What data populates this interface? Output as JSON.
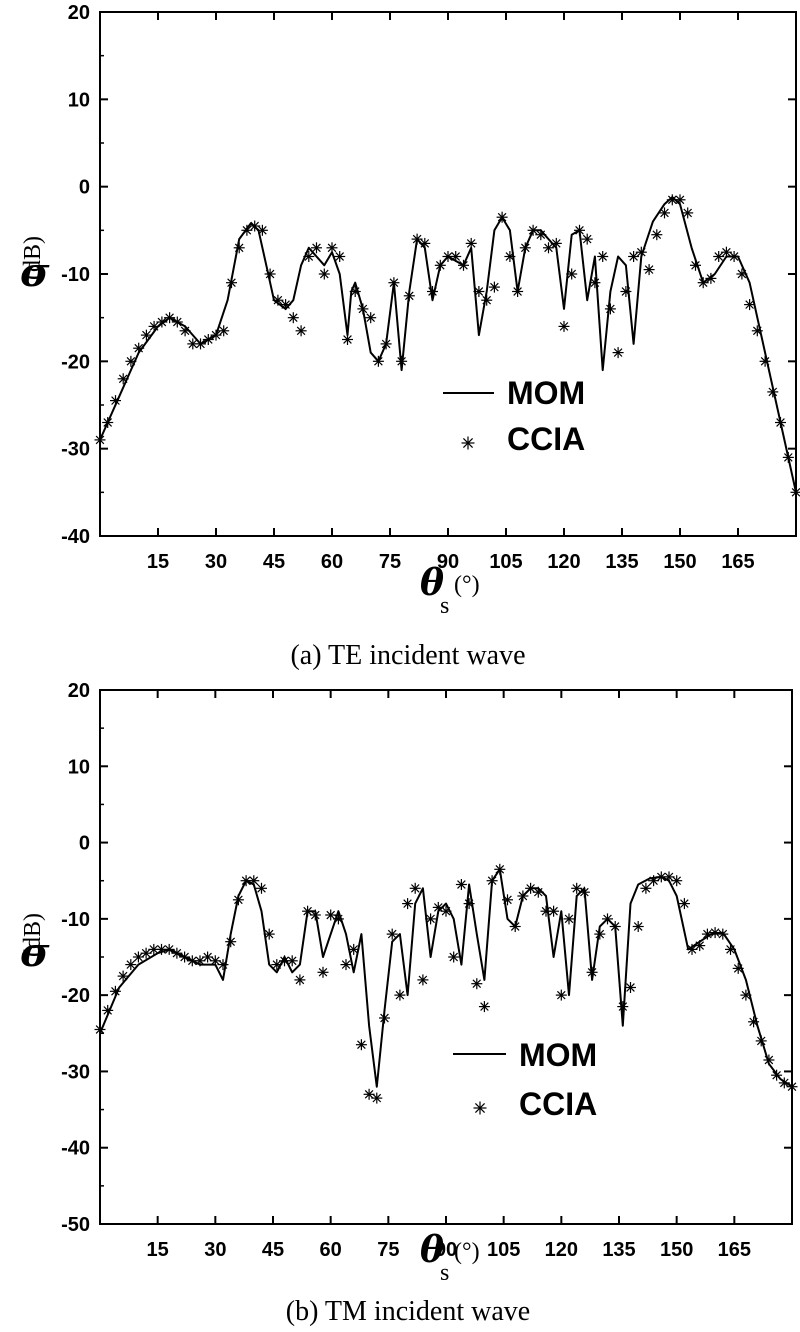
{
  "chart_data": [
    {
      "type": "line",
      "caption": "(a) TE incident wave",
      "ylabel_symbol": "σ",
      "ylabel_unit": "(dB)",
      "xlabel_symbol": "θ",
      "xlabel_sub": "s",
      "xlabel_unit": "(°)",
      "xlim": [
        0,
        180
      ],
      "ylim": [
        -40,
        20
      ],
      "xticks": [
        15,
        30,
        45,
        60,
        75,
        90,
        105,
        120,
        135,
        150,
        165
      ],
      "yticks": [
        20,
        10,
        0,
        -10,
        -20,
        -30,
        -40
      ],
      "legend": [
        "MOM",
        "CCIA"
      ],
      "legend_position": "center-right",
      "series": [
        {
          "name": "MOM",
          "style": "line",
          "x": [
            0,
            5,
            10,
            15,
            18,
            22,
            26,
            30,
            33,
            36,
            39,
            41,
            43,
            45,
            48,
            50,
            52,
            54,
            56,
            58,
            60,
            62,
            64,
            65,
            66,
            68,
            70,
            72,
            74,
            76,
            78,
            80,
            82,
            84,
            86,
            88,
            90,
            92,
            94,
            96,
            98,
            100,
            102,
            104,
            106,
            108,
            110,
            112,
            114,
            116,
            118,
            120,
            122,
            124,
            126,
            128,
            130,
            132,
            134,
            136,
            138,
            140,
            143,
            146,
            148,
            150,
            153,
            156,
            159,
            162,
            165,
            168,
            171,
            174,
            177,
            180
          ],
          "y": [
            -29,
            -24,
            -19,
            -16,
            -15,
            -16,
            -18,
            -17,
            -13,
            -6,
            -4.2,
            -5,
            -9,
            -13,
            -14,
            -13,
            -9,
            -7,
            -8,
            -9,
            -7.5,
            -10,
            -17,
            -12,
            -11,
            -14,
            -19,
            -20,
            -18,
            -11,
            -21,
            -12,
            -6,
            -7,
            -13,
            -9,
            -8,
            -8.5,
            -9,
            -7,
            -17,
            -12,
            -5,
            -3.5,
            -5,
            -12,
            -7,
            -5,
            -5,
            -6,
            -7,
            -14,
            -5.5,
            -5,
            -13,
            -8,
            -21,
            -12,
            -8,
            -9,
            -18,
            -8,
            -4,
            -2,
            -1.2,
            -2,
            -7,
            -11,
            -10,
            -8,
            -8,
            -11,
            -17,
            -23,
            -29,
            -35
          ]
        },
        {
          "name": "CCIA",
          "style": "markers",
          "x": [
            0,
            2,
            4,
            6,
            8,
            10,
            12,
            14,
            16,
            18,
            20,
            22,
            24,
            26,
            28,
            30,
            32,
            34,
            36,
            38,
            40,
            42,
            44,
            46,
            48,
            50,
            52,
            54,
            56,
            58,
            60,
            62,
            64,
            66,
            68,
            70,
            72,
            74,
            76,
            78,
            80,
            82,
            84,
            86,
            88,
            90,
            92,
            94,
            96,
            98,
            100,
            102,
            104,
            106,
            108,
            110,
            112,
            114,
            116,
            118,
            120,
            122,
            124,
            126,
            128,
            130,
            132,
            134,
            136,
            138,
            140,
            142,
            144,
            146,
            148,
            150,
            152,
            154,
            156,
            158,
            160,
            162,
            164,
            166,
            168,
            170,
            172,
            174,
            176,
            178,
            180
          ],
          "y": [
            -29,
            -27,
            -24.5,
            -22,
            -20,
            -18.5,
            -17,
            -16,
            -15.5,
            -15,
            -15.5,
            -16.5,
            -18,
            -18,
            -17.5,
            -17,
            -16.5,
            -11,
            -7,
            -5,
            -4.5,
            -5,
            -10,
            -13,
            -13.5,
            -15,
            -16.5,
            -8,
            -7,
            -10,
            -7,
            -8,
            -17.5,
            -12,
            -14,
            -15,
            -20,
            -18,
            -11,
            -20,
            -12.5,
            -6,
            -6.5,
            -12,
            -9,
            -8,
            -8,
            -9,
            -6.5,
            -12,
            -13,
            -11.5,
            -3.5,
            -8,
            -12,
            -7,
            -5,
            -5.5,
            -7,
            -6.5,
            -16,
            -10,
            -5,
            -6,
            -11,
            -8,
            -14,
            -19,
            -12,
            -8,
            -7.5,
            -9.5,
            -5.5,
            -3,
            -1.5,
            -1.5,
            -3,
            -9,
            -11,
            -10.5,
            -8,
            -7.5,
            -8,
            -10,
            -13.5,
            -16.5,
            -20,
            -23.5,
            -27,
            -31,
            -35
          ]
        }
      ]
    },
    {
      "type": "line",
      "caption": "(b) TM incident wave",
      "ylabel_symbol": "σ",
      "ylabel_unit": "(dB)",
      "xlabel_symbol": "θ",
      "xlabel_sub": "s",
      "xlabel_unit": "(°)",
      "xlim": [
        0,
        180
      ],
      "ylim": [
        -50,
        20
      ],
      "xticks": [
        15,
        30,
        45,
        60,
        75,
        90,
        105,
        120,
        135,
        150,
        165
      ],
      "yticks": [
        20,
        10,
        0,
        -10,
        -20,
        -30,
        -40,
        -50
      ],
      "legend": [
        "MOM",
        "CCIA"
      ],
      "legend_position": "lower-right",
      "series": [
        {
          "name": "MOM",
          "style": "line",
          "x": [
            0,
            5,
            10,
            15,
            18,
            22,
            26,
            30,
            32,
            34,
            36,
            38,
            40,
            42,
            44,
            46,
            48,
            50,
            52,
            54,
            56,
            58,
            60,
            62,
            64,
            66,
            68,
            70,
            72,
            74,
            76,
            78,
            80,
            82,
            84,
            86,
            88,
            90,
            92,
            94,
            96,
            98,
            100,
            102,
            104,
            106,
            108,
            110,
            112,
            114,
            116,
            118,
            120,
            122,
            124,
            126,
            128,
            130,
            132,
            134,
            136,
            138,
            140,
            143,
            146,
            148,
            150,
            153,
            156,
            159,
            162,
            165,
            168,
            171,
            174,
            177,
            180
          ],
          "y": [
            -25,
            -19,
            -16,
            -14.5,
            -14,
            -15,
            -16,
            -16,
            -18,
            -12,
            -7,
            -5,
            -5.5,
            -9,
            -16,
            -17,
            -15,
            -17,
            -16,
            -9,
            -9,
            -15,
            -12,
            -9,
            -12,
            -17,
            -12,
            -24,
            -32,
            -22,
            -13,
            -12,
            -20,
            -8,
            -6,
            -15,
            -9,
            -8,
            -10,
            -16,
            -5.5,
            -12,
            -18,
            -5,
            -3.5,
            -10,
            -11,
            -7,
            -6,
            -6,
            -7,
            -15,
            -9,
            -20,
            -7,
            -6,
            -18,
            -11,
            -10,
            -11,
            -24,
            -8,
            -5.5,
            -4.7,
            -4.5,
            -5,
            -7,
            -14,
            -13,
            -12,
            -11.8,
            -14,
            -18,
            -24,
            -29,
            -31,
            -32
          ]
        },
        {
          "name": "CCIA",
          "style": "markers",
          "x": [
            0,
            2,
            4,
            6,
            8,
            10,
            12,
            14,
            16,
            18,
            20,
            22,
            24,
            26,
            28,
            30,
            32,
            34,
            36,
            38,
            40,
            42,
            44,
            46,
            48,
            50,
            52,
            54,
            56,
            58,
            60,
            62,
            64,
            66,
            68,
            70,
            72,
            74,
            76,
            78,
            80,
            82,
            84,
            86,
            88,
            90,
            92,
            94,
            96,
            98,
            100,
            102,
            104,
            106,
            108,
            110,
            112,
            114,
            116,
            118,
            120,
            122,
            124,
            126,
            128,
            130,
            132,
            134,
            136,
            138,
            140,
            142,
            144,
            146,
            148,
            150,
            152,
            154,
            156,
            158,
            160,
            162,
            164,
            166,
            168,
            170,
            172,
            174,
            176,
            178,
            180
          ],
          "y": [
            -24.5,
            -22,
            -19.5,
            -17.5,
            -16,
            -15,
            -14.5,
            -14,
            -14,
            -14,
            -14.5,
            -15,
            -15.5,
            -15.5,
            -15,
            -15.5,
            -16,
            -13,
            -7.5,
            -5,
            -5,
            -6,
            -12,
            -16,
            -15.5,
            -15.5,
            -18,
            -9,
            -9.5,
            -17,
            -9.5,
            -10,
            -16,
            -14,
            -26.5,
            -33,
            -33.5,
            -23,
            -12,
            -20,
            -8,
            -6,
            -18,
            -10,
            -8.5,
            -9,
            -15,
            -5.5,
            -8,
            -18.5,
            -21.5,
            -5,
            -3.5,
            -7.5,
            -11,
            -7,
            -6,
            -6.5,
            -9,
            -9,
            -20,
            -10,
            -6,
            -6.5,
            -17,
            -12,
            -10,
            -11,
            -21.5,
            -19,
            -11,
            -6,
            -5,
            -4.5,
            -4.5,
            -5,
            -8,
            -14,
            -13.5,
            -12,
            -11.8,
            -12,
            -14,
            -16.5,
            -20,
            -23.5,
            -26,
            -28.5,
            -30.5,
            -31.5,
            -32
          ]
        }
      ]
    }
  ]
}
